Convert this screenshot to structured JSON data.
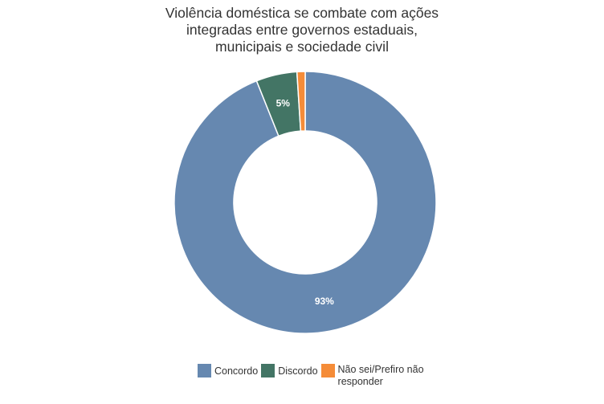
{
  "chart_data": {
    "type": "pie",
    "variant": "donut",
    "title": "Violência doméstica se combate com ações integradas entre governos estaduais, municipais e sociedade civil",
    "title_lines": [
      "Violência doméstica se combate com ações",
      "integradas entre governos estaduais,",
      "municipais e sociedade civil"
    ],
    "categories": [
      "Concordo",
      "Discordo",
      "Não sei/Prefiro não responder"
    ],
    "values": [
      93,
      5,
      1
    ],
    "data_labels": [
      "93%",
      "5%",
      ""
    ],
    "colors": [
      "#6688b0",
      "#437565",
      "#f58c38"
    ],
    "legend_position": "bottom"
  }
}
